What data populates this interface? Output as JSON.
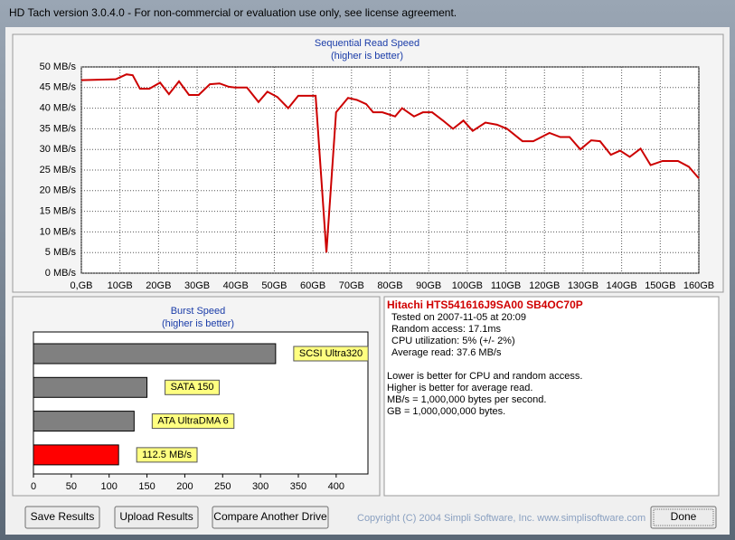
{
  "window": {
    "title": "HD Tach version 3.0.4.0  - For non-commercial or evaluation use only, see license agreement."
  },
  "chart_data": [
    {
      "type": "line",
      "title": "Sequential Read Speed",
      "subtitle": "(higher is better)",
      "color": "#cc0000",
      "grid": true,
      "x": [
        0,
        8.9,
        11.7,
        13.3,
        15.2,
        17.6,
        20.4,
        22.7,
        25.3,
        27.9,
        30.4,
        33.3,
        35.8,
        38.2,
        39.8,
        42.9,
        45.9,
        48.2,
        50.8,
        53.6,
        56.2,
        60.7,
        63.5,
        66,
        69.1,
        71.4,
        73.8,
        75.6,
        78,
        81.3,
        83.1,
        86.2,
        88.5,
        90.9,
        93.7,
        96.3,
        99,
        101.4,
        104.7,
        107.7,
        110.3,
        114.3,
        117.1,
        121.3,
        124.1,
        126.5,
        129.3,
        132.1,
        134.4,
        137.2,
        139.6,
        142.1,
        144.9,
        147.5,
        150.6,
        154.6,
        157.4,
        160
      ],
      "values": [
        46.8,
        47,
        48.2,
        48,
        44.7,
        44.7,
        46.2,
        43.4,
        46.5,
        43.2,
        43.2,
        45.8,
        46,
        45.2,
        45,
        45,
        41.5,
        44,
        42.7,
        40,
        43,
        43,
        5,
        39,
        42.5,
        42,
        41,
        39,
        39,
        38,
        40,
        38,
        39,
        39,
        37,
        35,
        37,
        34.5,
        36.5,
        36,
        35,
        32,
        32,
        34,
        33,
        33,
        30,
        32.2,
        32,
        28.7,
        29.7,
        28.2,
        30.2,
        26.2,
        27.2,
        27.2,
        25.8,
        23
      ],
      "xlim": [
        0,
        160
      ],
      "ylim": [
        0,
        50
      ],
      "xticks": [
        {
          "value": 0,
          "label": "0,GB"
        },
        {
          "value": 10,
          "label": "10GB"
        },
        {
          "value": 20,
          "label": "20GB"
        },
        {
          "value": 30,
          "label": "30GB"
        },
        {
          "value": 40,
          "label": "40GB"
        },
        {
          "value": 50,
          "label": "50GB"
        },
        {
          "value": 60,
          "label": "60GB"
        },
        {
          "value": 70,
          "label": "70GB"
        },
        {
          "value": 80,
          "label": "80GB"
        },
        {
          "value": 90,
          "label": "90GB"
        },
        {
          "value": 100,
          "label": "100GB"
        },
        {
          "value": 110,
          "label": "110GB"
        },
        {
          "value": 120,
          "label": "120GB"
        },
        {
          "value": 130,
          "label": "130GB"
        },
        {
          "value": 140,
          "label": "140GB"
        },
        {
          "value": 150,
          "label": "150GB"
        },
        {
          "value": 160,
          "label": "160GB"
        }
      ],
      "yticks": [
        {
          "value": 0,
          "label": "0 MB/s"
        },
        {
          "value": 5,
          "label": "5 MB/s"
        },
        {
          "value": 10,
          "label": "10 MB/s"
        },
        {
          "value": 15,
          "label": "15 MB/s"
        },
        {
          "value": 20,
          "label": "20 MB/s"
        },
        {
          "value": 25,
          "label": "25 MB/s"
        },
        {
          "value": 30,
          "label": "30 MB/s"
        },
        {
          "value": 35,
          "label": "35 MB/s"
        },
        {
          "value": 40,
          "label": "40 MB/s"
        },
        {
          "value": 45,
          "label": "45 MB/s"
        },
        {
          "value": 50,
          "label": "50 MB/s"
        }
      ]
    },
    {
      "type": "barh",
      "title": "Burst Speed",
      "subtitle": "(higher is better)",
      "categories": [
        "SCSI Ultra320",
        "SATA 150",
        "ATA UltraDMA 6",
        null
      ],
      "values": [
        320,
        150,
        133,
        112.5
      ],
      "value_labels": [
        null,
        null,
        null,
        "112.5 MB/s"
      ],
      "colors": [
        "#808080",
        "#808080",
        "#808080",
        "#ff0000"
      ],
      "xlim": [
        0,
        442
      ],
      "xticks": [
        0,
        50,
        100,
        150,
        200,
        250,
        300,
        350,
        400
      ]
    }
  ],
  "info": {
    "drive": "Hitachi HTS541616J9SA00 SB4OC70P",
    "lines": [
      "Tested on 2007-11-05 at 20:09",
      "Random access: 17.1ms",
      "CPU utilization: 5% (+/- 2%)",
      "Average read: 37.6 MB/s"
    ],
    "notes": [
      "Lower is better for CPU and random access.",
      "Higher is better for average read.",
      "MB/s = 1,000,000 bytes per second.",
      "GB = 1,000,000,000 bytes."
    ]
  },
  "buttons": [
    "Save Results",
    "Upload Results",
    "Compare Another Drive",
    "Done"
  ],
  "copyright": "Copyright (C) 2004 Simpli Software, Inc. www.simplisoftware.com"
}
